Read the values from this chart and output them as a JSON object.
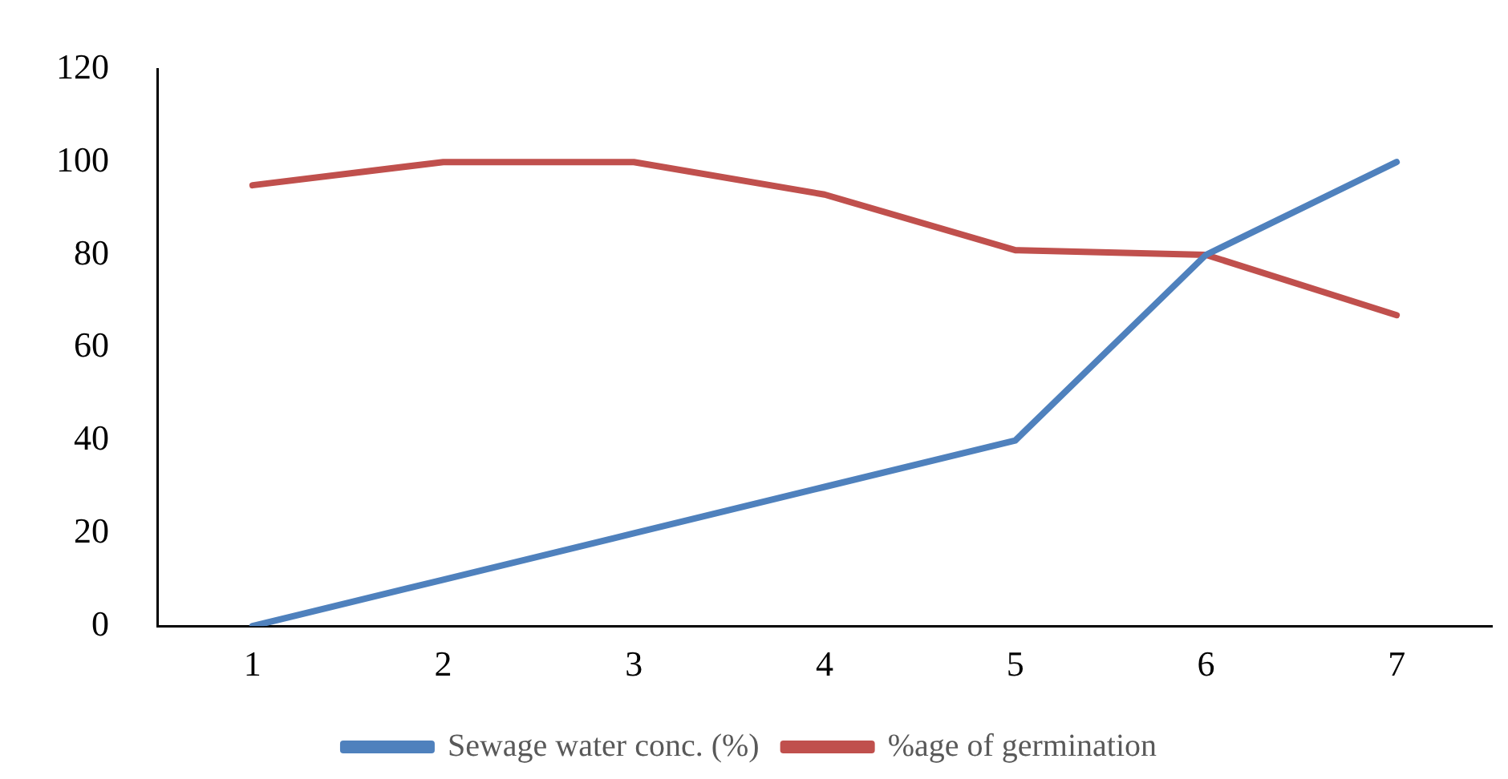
{
  "chart_data": {
    "type": "line",
    "categories": [
      "1",
      "2",
      "3",
      "4",
      "5",
      "6",
      "7"
    ],
    "series": [
      {
        "name": "Sewage water conc. (%)",
        "color": "#4f81bd",
        "values": [
          0,
          10,
          20,
          30,
          40,
          80,
          100
        ]
      },
      {
        "name": "%age of germination",
        "color": "#c0504d",
        "values": [
          95,
          100,
          100,
          93,
          81,
          80,
          67
        ]
      }
    ],
    "ylim": [
      0,
      120
    ],
    "yticks": [
      0,
      20,
      40,
      60,
      80,
      100,
      120
    ],
    "grid": false,
    "legend": "bottom",
    "marker": "none",
    "line_style": "solid"
  }
}
